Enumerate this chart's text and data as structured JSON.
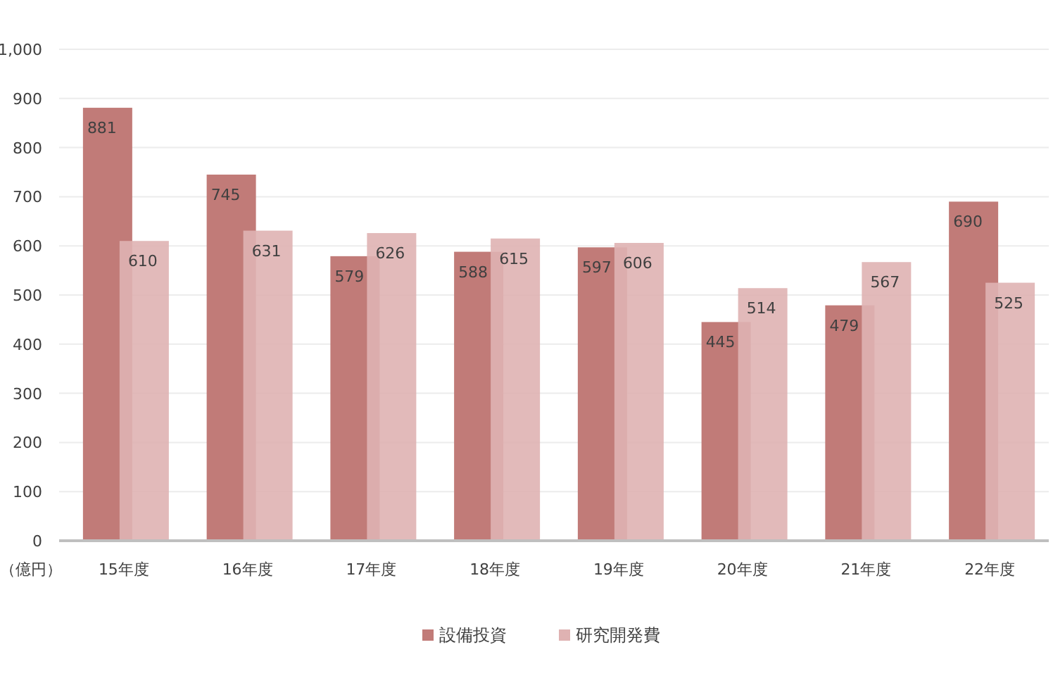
{
  "chart_data": {
    "type": "bar",
    "ylabel": "（億円）",
    "categories": [
      "15年度",
      "16年度",
      "17年度",
      "18年度",
      "19年度",
      "20年度",
      "21年度",
      "22年度"
    ],
    "series": [
      {
        "name": "設備投資",
        "color": "#c17b78",
        "values": [
          881,
          745,
          579,
          588,
          597,
          445,
          479,
          690
        ]
      },
      {
        "name": "研究開発費",
        "color": "#dfb2b2",
        "values": [
          610,
          631,
          626,
          615,
          606,
          514,
          567,
          525
        ]
      }
    ],
    "ylim": [
      0,
      1000
    ],
    "yticks": [
      0,
      100,
      200,
      300,
      400,
      500,
      600,
      700,
      800,
      900,
      {
        "value": 1000,
        "label": "1,000"
      }
    ],
    "grid": "y",
    "legend": "bottom",
    "data_labels": true
  }
}
